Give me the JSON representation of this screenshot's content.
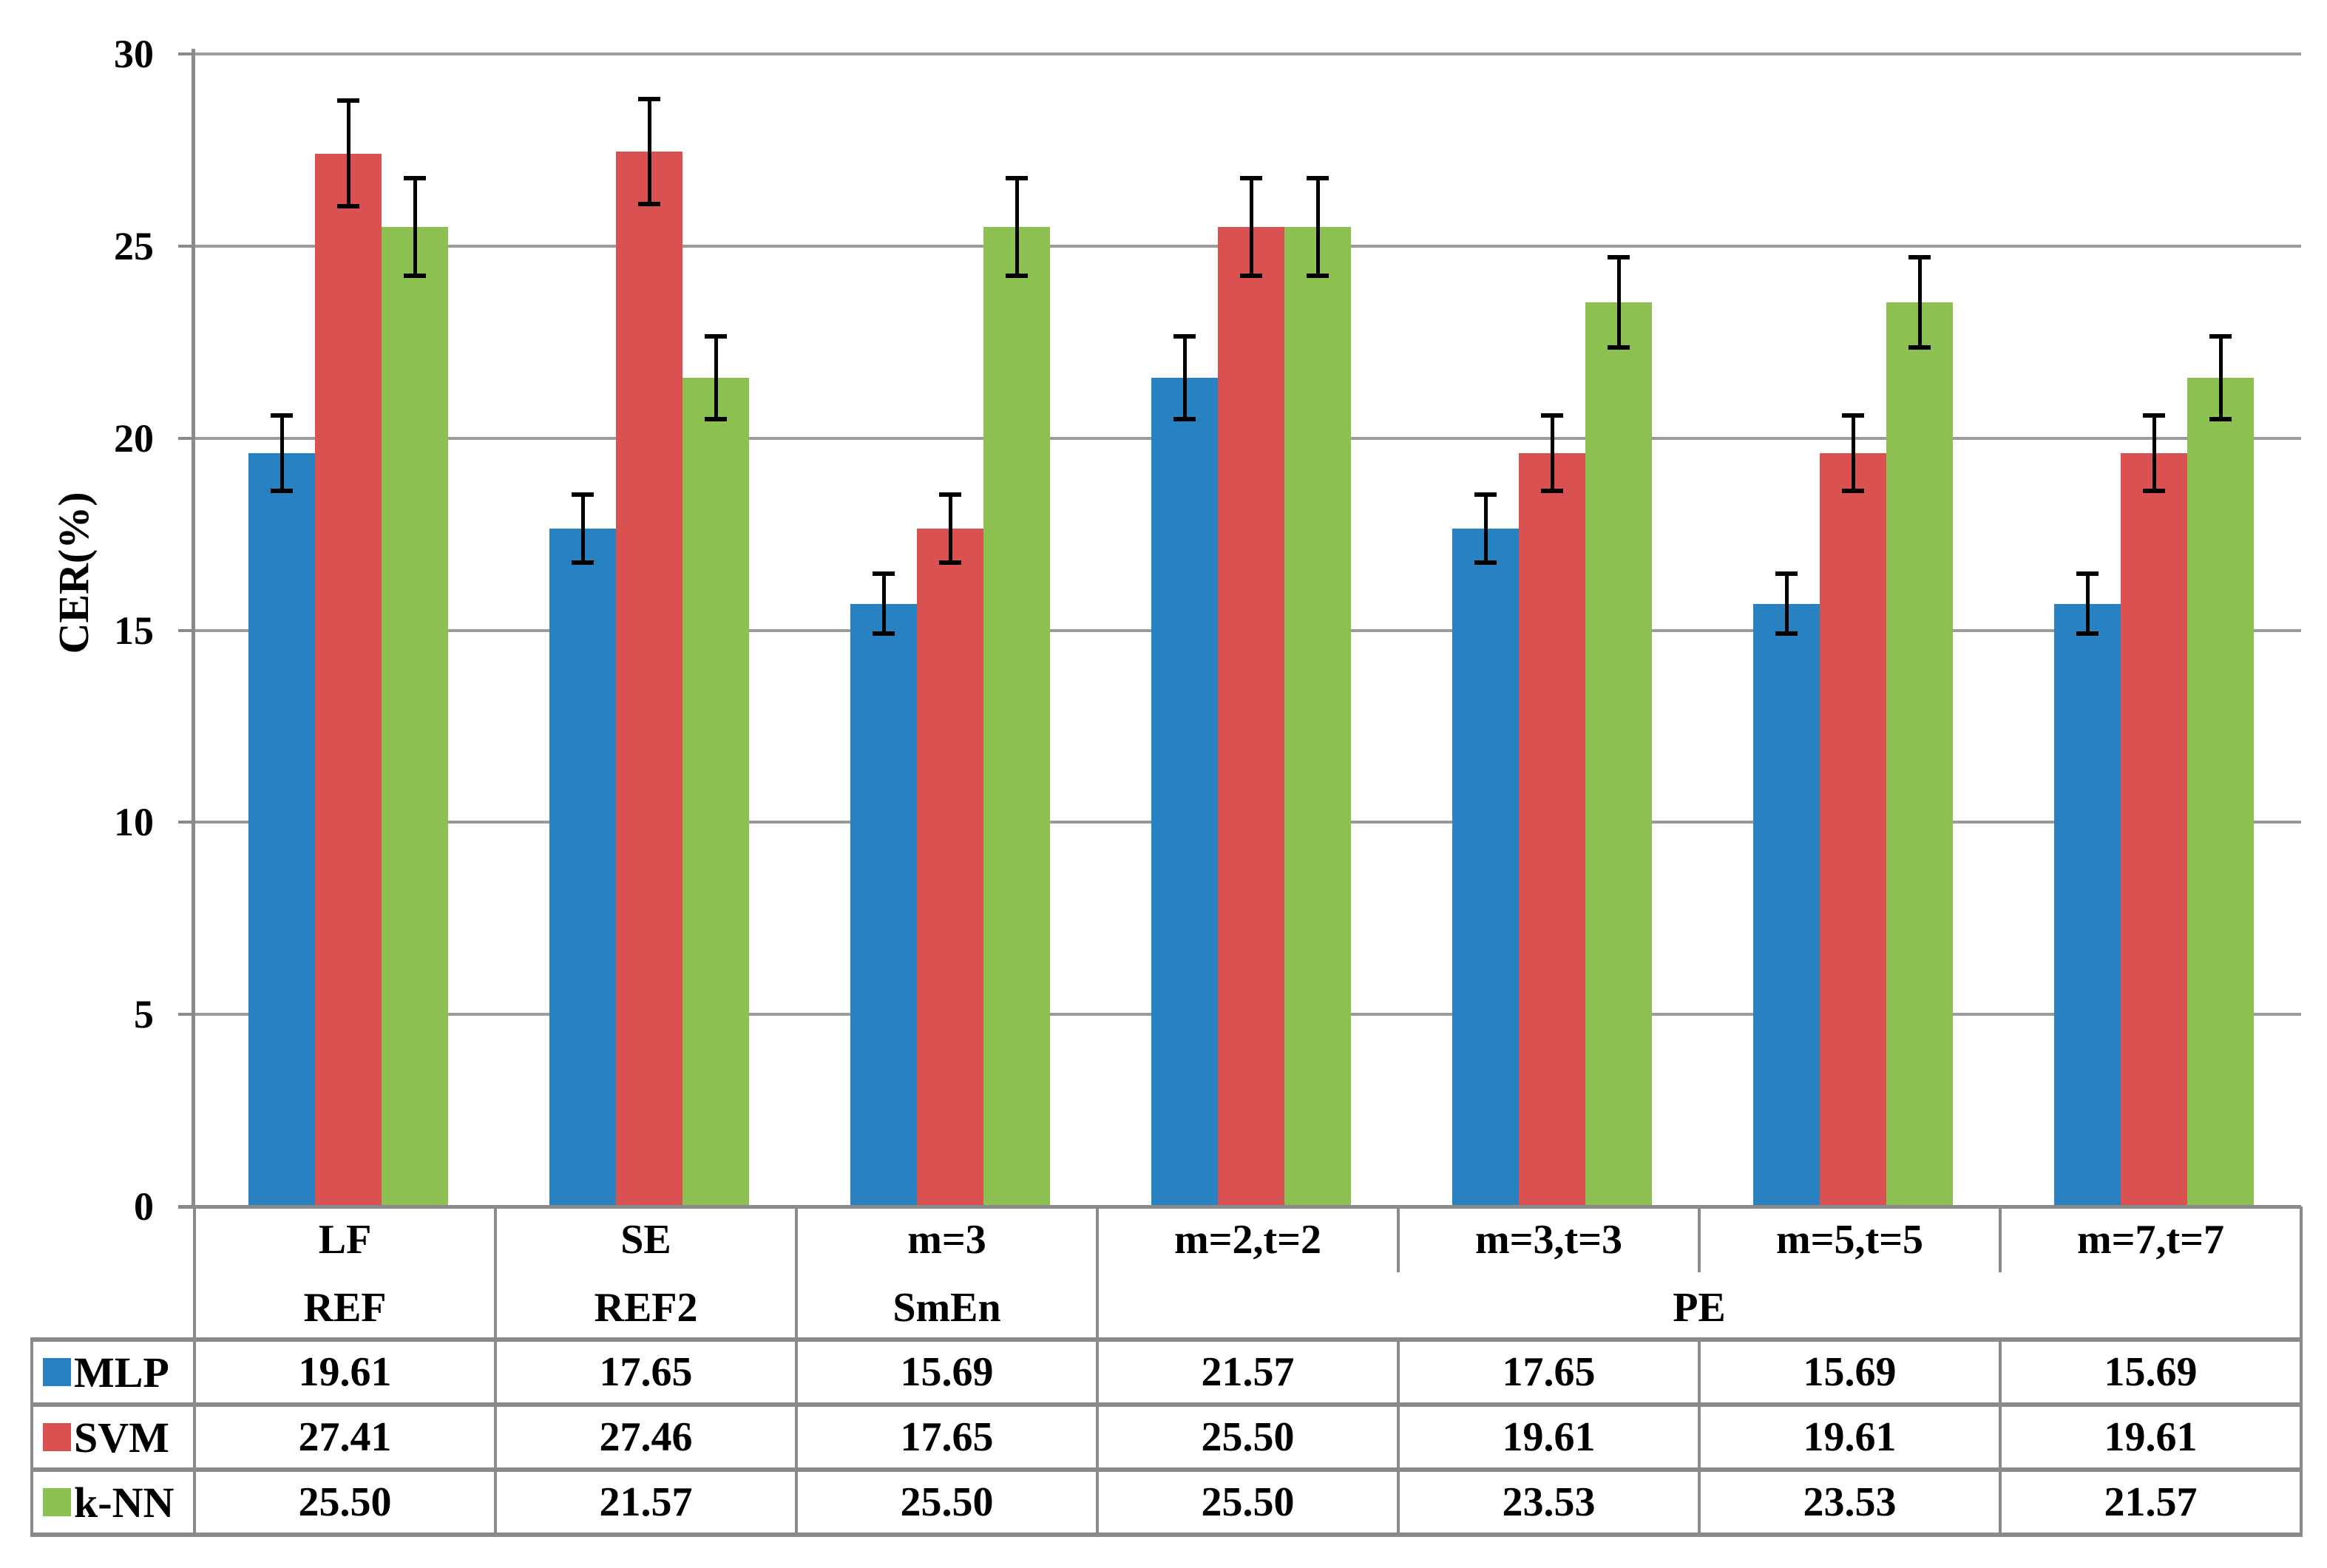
{
  "chart_data": {
    "type": "bar",
    "title": "",
    "xlabel": "",
    "ylabel": "CER(%)",
    "ylim": [
      0,
      30
    ],
    "ytick_step": 5,
    "yticks": [
      0,
      5,
      10,
      15,
      20,
      25,
      30
    ],
    "grid": "horizontal gridlines every 5 units",
    "legend_position": "table rows below chart (swatch + series name)",
    "error_bars": "plus/minus 5% of each value, with end caps",
    "value_format": "2 decimals",
    "categories": [
      "LF",
      "SE",
      "m=3",
      "m=2,t=2",
      "m=3,t=3",
      "m=5,t=5",
      "m=7,t=7"
    ],
    "category_groups": [
      {
        "label": "REF",
        "span": 1
      },
      {
        "label": "REF2",
        "span": 1
      },
      {
        "label": "SmEn",
        "span": 1
      },
      {
        "label": "PE",
        "span": 4
      }
    ],
    "series": [
      {
        "name": "MLP",
        "color": "#2881c0",
        "values": [
          19.61,
          17.65,
          15.69,
          21.57,
          17.65,
          15.69,
          15.69
        ]
      },
      {
        "name": "SVM",
        "color": "#d95151",
        "values": [
          27.41,
          27.46,
          17.65,
          25.5,
          19.61,
          19.61,
          19.61
        ]
      },
      {
        "name": "k-NN",
        "color": "#8cc050",
        "values": [
          25.5,
          21.57,
          25.5,
          25.5,
          23.53,
          23.53,
          21.57
        ]
      }
    ],
    "colors": {
      "gridline": "#9a9a9a",
      "axis_and_table_border": "#8a8a8a",
      "text": "#000000",
      "background": "#ffffff"
    }
  }
}
